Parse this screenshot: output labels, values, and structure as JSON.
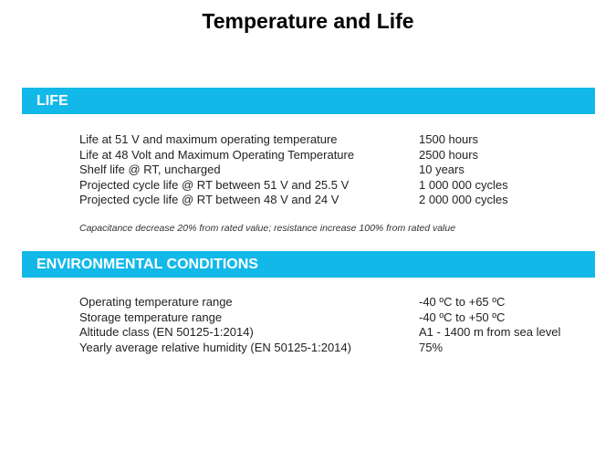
{
  "title": "Temperature and Life",
  "life": {
    "header": "LIFE",
    "rows": [
      {
        "label": "Life at 51 V and maximum operating temperature",
        "value": "1500 hours"
      },
      {
        "label": "Life at 48 Volt and Maximum Operating Temperature",
        "value": "2500 hours"
      },
      {
        "label": "Shelf life @ RT, uncharged",
        "value": "10 years"
      },
      {
        "label": "Projected cycle life @ RT between 51 V and 25.5 V",
        "value": "1 000 000 cycles"
      },
      {
        "label": "Projected cycle life @ RT between 48 V and 24 V",
        "value": "2 000 000 cycles"
      }
    ],
    "note": "Capacitance decrease 20% from rated value; resistance increase 100% from rated value"
  },
  "environment": {
    "header": "ENVIRONMENTAL CONDITIONS",
    "rows": [
      {
        "label": "Operating temperature range",
        "value": "-40 ºC to +65 ºC"
      },
      {
        "label": "Storage temperature range",
        "value": "-40 ºC to +50 ºC"
      },
      {
        "label": "Altitude class (EN 50125-1:2014)",
        "value": "A1 - 1400 m from sea level"
      },
      {
        "label": "Yearly average relative humidity (EN 50125-1:2014)",
        "value": "75%"
      }
    ]
  },
  "colors": {
    "band": "#12b9e8"
  }
}
